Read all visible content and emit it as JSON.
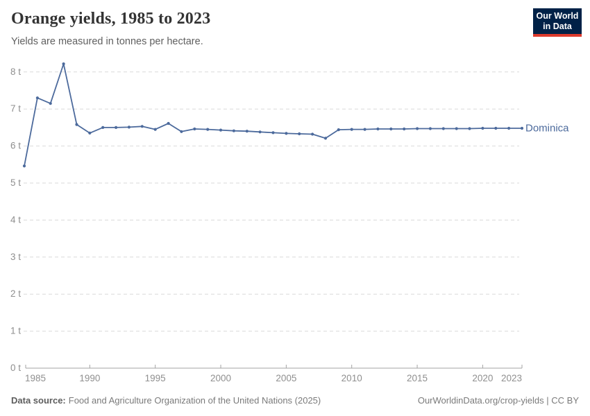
{
  "header": {
    "title": "Orange yields, 1985 to 2023",
    "subtitle": "Yields are measured in tonnes per hectare."
  },
  "logo": {
    "line1": "Our World",
    "line2": "in Data"
  },
  "colors": {
    "line": "#4c6a9c",
    "logo_bg": "#002147",
    "logo_accent": "#dc3a2c"
  },
  "chart_data": {
    "type": "line",
    "title": "Orange yields, 1985 to 2023",
    "xlabel": "",
    "ylabel": "tonnes per hectare",
    "unit": "t",
    "grid": "horizontal-dashed",
    "legend": "end-of-line-label",
    "ylim": [
      0,
      8.3
    ],
    "xlim": [
      1985,
      2023
    ],
    "x": [
      1985,
      1986,
      1987,
      1988,
      1989,
      1990,
      1991,
      1992,
      1993,
      1994,
      1995,
      1996,
      1997,
      1998,
      1999,
      2000,
      2001,
      2002,
      2003,
      2004,
      2005,
      2006,
      2007,
      2008,
      2009,
      2010,
      2011,
      2012,
      2013,
      2014,
      2015,
      2016,
      2017,
      2018,
      2019,
      2020,
      2021,
      2022,
      2023
    ],
    "series": [
      {
        "name": "Dominica",
        "values": [
          5.46,
          7.3,
          7.15,
          8.22,
          6.58,
          6.35,
          6.5,
          6.5,
          6.51,
          6.53,
          6.45,
          6.61,
          6.39,
          6.46,
          6.45,
          6.43,
          6.41,
          6.4,
          6.38,
          6.36,
          6.34,
          6.33,
          6.32,
          6.21,
          6.44,
          6.45,
          6.45,
          6.46,
          6.46,
          6.46,
          6.47,
          6.47,
          6.47,
          6.47,
          6.47,
          6.48,
          6.48,
          6.48,
          6.48
        ]
      }
    ],
    "yticks": [
      {
        "value": 0,
        "label": "0 t"
      },
      {
        "value": 1,
        "label": "1 t"
      },
      {
        "value": 2,
        "label": "2 t"
      },
      {
        "value": 3,
        "label": "3 t"
      },
      {
        "value": 4,
        "label": "4 t"
      },
      {
        "value": 5,
        "label": "5 t"
      },
      {
        "value": 6,
        "label": "6 t"
      },
      {
        "value": 7,
        "label": "7 t"
      },
      {
        "value": 8,
        "label": "8 t"
      }
    ],
    "xticks": [
      1985,
      1990,
      1995,
      2000,
      2005,
      2010,
      2015,
      2020,
      2023
    ]
  },
  "footer": {
    "source_label": "Data source:",
    "source_text": "Food and Agriculture Organization of the United Nations (2025)",
    "link_text": "OurWorldinData.org/crop-yields | CC BY"
  }
}
